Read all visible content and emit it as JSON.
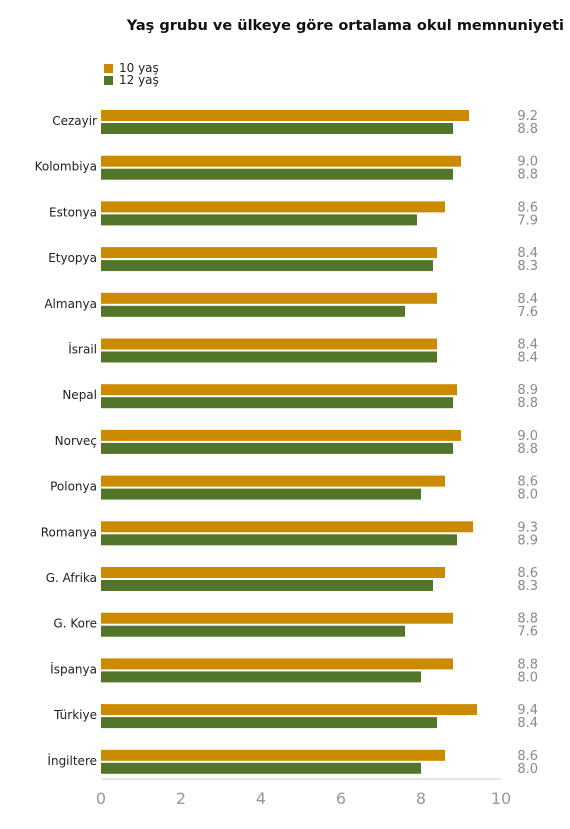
{
  "chart_data": {
    "type": "bar",
    "orientation": "horizontal",
    "title": "Yaş grubu ve ülkeye göre ortalama okul memnuniyeti",
    "categories": [
      "Cezayir",
      "Kolombiya",
      "Estonya",
      "Etyopya",
      "Almanya",
      "İsrail",
      "Nepal",
      "Norveç",
      "Polonya",
      "Romanya",
      "G. Afrika",
      "G. Kore",
      "İspanya",
      "Türkiye",
      "İngiltere"
    ],
    "series": [
      {
        "name": "10 yaş",
        "color": "#cc8a00",
        "values": [
          9.2,
          9.0,
          8.6,
          8.4,
          8.4,
          8.4,
          8.9,
          9.0,
          8.6,
          9.3,
          8.6,
          8.8,
          8.8,
          9.4,
          8.6
        ],
        "labels": [
          "9.2",
          "9.0",
          "8.6",
          "8.4",
          "8.4",
          "8.4",
          "8.9",
          "9.0",
          "8.6",
          "9.3",
          "8.6",
          "8.8",
          "8.8",
          "9.4",
          "8.6"
        ]
      },
      {
        "name": "12 yaş",
        "color": "#52752a",
        "values": [
          8.8,
          8.8,
          7.9,
          8.3,
          7.6,
          8.4,
          8.8,
          8.8,
          8.0,
          8.9,
          8.3,
          7.6,
          8.0,
          8.4,
          8.0
        ],
        "labels": [
          "8.8",
          "8.8",
          "7.9",
          "8.3",
          "7.6",
          "8.4",
          "8.8",
          "8.8",
          "8.0",
          "8.9",
          "8.3",
          "7.6",
          "8.0",
          "8.4",
          "8.0"
        ]
      }
    ],
    "xlim": [
      0,
      10
    ],
    "xticks": [
      "0",
      "2",
      "4",
      "6",
      "8",
      "10"
    ],
    "xlabel": "",
    "ylabel": "",
    "grid": false,
    "legend_position": "top-left"
  }
}
